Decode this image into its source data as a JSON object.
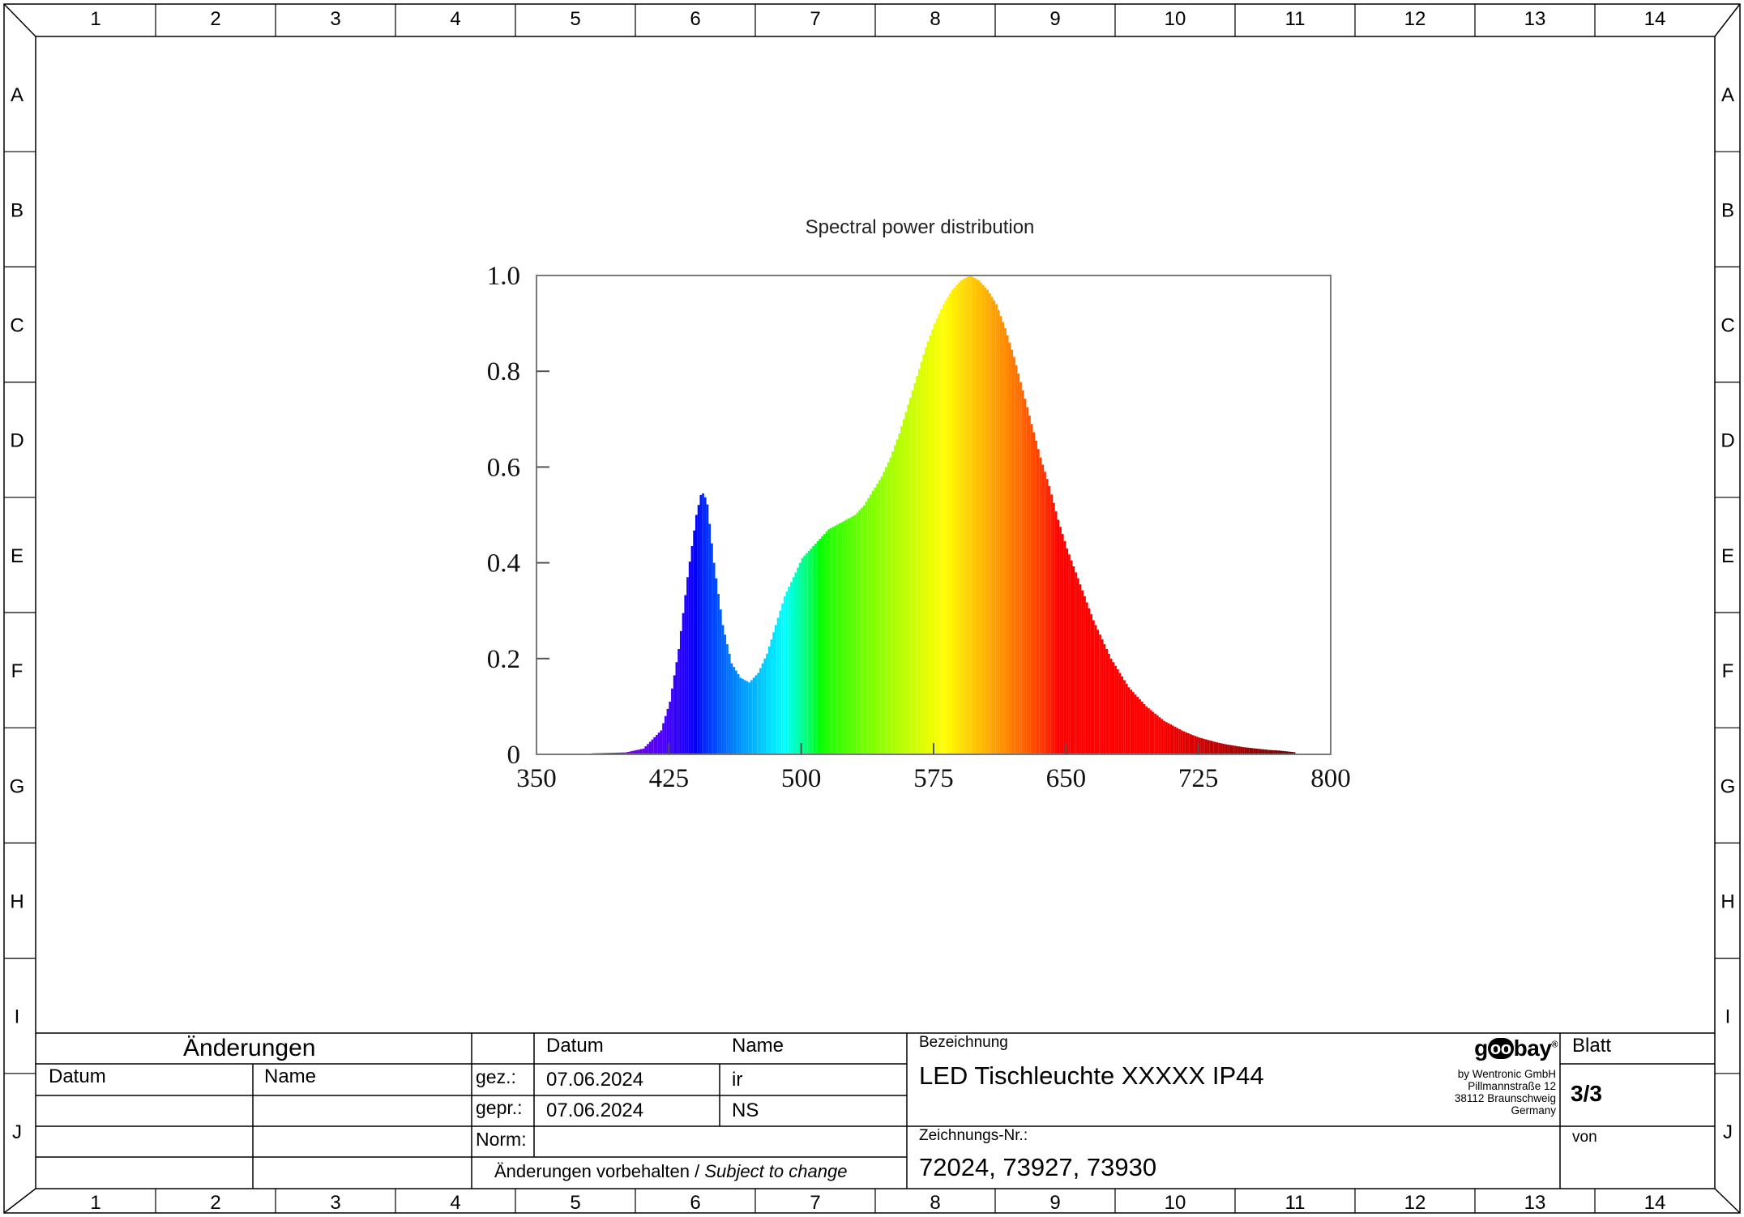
{
  "frame": {
    "columns": [
      "1",
      "2",
      "3",
      "4",
      "5",
      "6",
      "7",
      "8",
      "9",
      "10",
      "11",
      "12",
      "13",
      "14"
    ],
    "rows": [
      "A",
      "B",
      "C",
      "D",
      "E",
      "F",
      "G",
      "H",
      "I",
      "J"
    ]
  },
  "chart_data": {
    "type": "area",
    "title": "Spectral power distribution",
    "xlabel": "",
    "ylabel": "",
    "xlim": [
      350,
      800
    ],
    "ylim": [
      0,
      1.0
    ],
    "x_ticks": [
      "350",
      "425",
      "500",
      "575",
      "650",
      "725",
      "800"
    ],
    "y_ticks": [
      "0",
      "0.2",
      "0.4",
      "0.6",
      "0.8",
      "1.0"
    ],
    "grid": false,
    "legend": "none",
    "fill": "wavelength-colored spectrum",
    "x": [
      380,
      400,
      410,
      420,
      425,
      430,
      435,
      440,
      443,
      446,
      450,
      455,
      460,
      465,
      470,
      475,
      480,
      485,
      490,
      495,
      500,
      505,
      510,
      515,
      520,
      525,
      530,
      535,
      540,
      545,
      550,
      555,
      560,
      565,
      570,
      575,
      580,
      585,
      590,
      595,
      600,
      605,
      610,
      615,
      620,
      625,
      630,
      635,
      640,
      645,
      650,
      655,
      660,
      665,
      670,
      675,
      680,
      685,
      690,
      695,
      700,
      705,
      710,
      715,
      720,
      725,
      730,
      735,
      740,
      745,
      750,
      755,
      760,
      765,
      770,
      775,
      780
    ],
    "y": [
      0.002,
      0.004,
      0.012,
      0.05,
      0.11,
      0.22,
      0.37,
      0.5,
      0.55,
      0.53,
      0.4,
      0.27,
      0.19,
      0.16,
      0.15,
      0.17,
      0.21,
      0.27,
      0.33,
      0.37,
      0.41,
      0.43,
      0.45,
      0.47,
      0.48,
      0.49,
      0.5,
      0.52,
      0.55,
      0.58,
      0.62,
      0.67,
      0.73,
      0.79,
      0.85,
      0.9,
      0.94,
      0.97,
      0.99,
      1.0,
      0.99,
      0.97,
      0.94,
      0.89,
      0.83,
      0.76,
      0.69,
      0.62,
      0.56,
      0.49,
      0.43,
      0.38,
      0.33,
      0.28,
      0.24,
      0.2,
      0.17,
      0.14,
      0.12,
      0.1,
      0.085,
      0.07,
      0.06,
      0.05,
      0.042,
      0.035,
      0.03,
      0.025,
      0.021,
      0.018,
      0.015,
      0.013,
      0.011,
      0.009,
      0.008,
      0.006,
      0.004
    ]
  },
  "title_block": {
    "changes_header": "Änderungen",
    "changes_col_date": "Datum",
    "changes_col_name": "Name",
    "hdr_date": "Datum",
    "hdr_name": "Name",
    "drawn_label": "gez.:",
    "drawn_date": "07.06.2024",
    "drawn_name": "ir",
    "checked_label": "gepr.:",
    "checked_date": "07.06.2024",
    "checked_name": "NS",
    "norm_label": "Norm:",
    "subject_to_change_de": "Änderungen vorbehalten / ",
    "subject_to_change_en": "Subject to change",
    "designation_label": "Bezeichnung",
    "designation": "LED Tischleuchte XXXXX IP44",
    "drawing_no_label": "Zeichnungs-Nr.:",
    "drawing_no": "72024, 73927, 73930",
    "sheet_label": "Blatt",
    "sheet_value": "3/3",
    "of_label": "von"
  },
  "company": {
    "logo_text": "goobay",
    "line1": "by Wentronic GmbH",
    "line2": "Pillmannstraße 12",
    "line3": "38112 Braunschweig",
    "line4": "Germany"
  }
}
